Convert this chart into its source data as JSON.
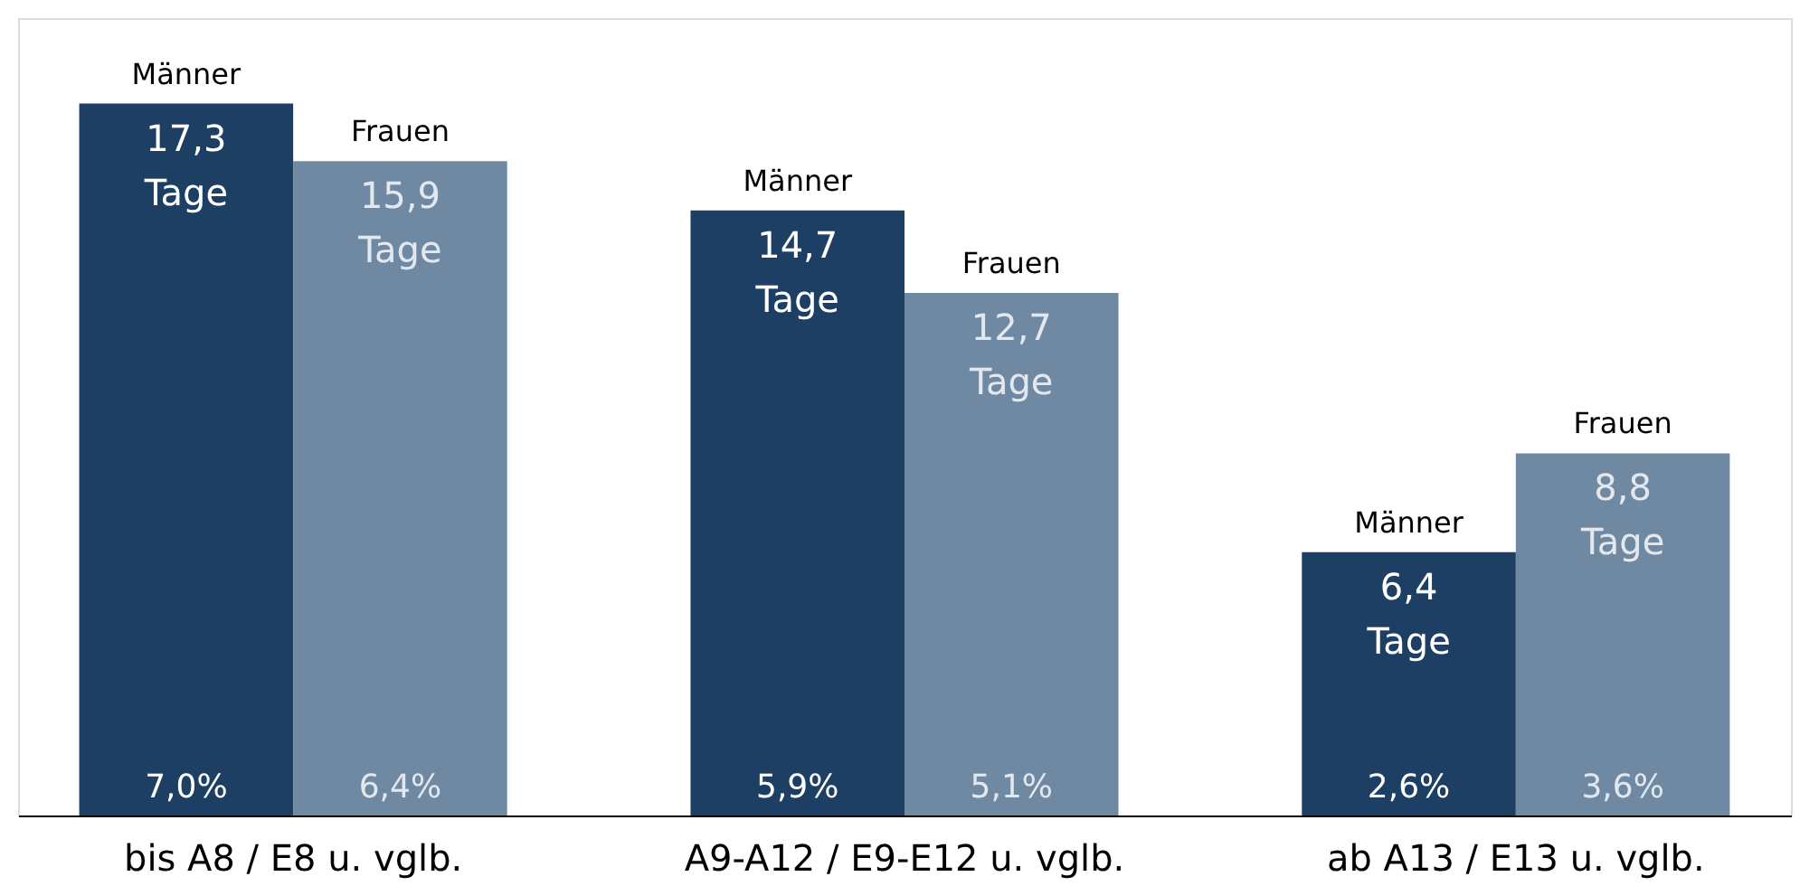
{
  "chart_data": {
    "type": "bar",
    "categories": [
      "bis A8 / E8 u. vglb.",
      "A9-A12 / E9-E12 u. vglb.",
      "ab A13 / E13 u. vglb."
    ],
    "series": [
      {
        "name": "Männer",
        "color": "#1c3f63",
        "values": [
          17.3,
          14.7,
          6.4
        ],
        "value_labels": [
          "17,3 Tage",
          "14,7 Tage",
          "6,4 Tage"
        ]
      },
      {
        "name": "Frauen",
        "color": "#7089a3",
        "values": [
          15.9,
          12.7,
          8.8
        ],
        "value_labels": [
          "15,9 Tage",
          "12,7 Tage",
          "8,8 Tage"
        ]
      }
    ],
    "annotations": [
      {
        "text": "7,0%",
        "x": "bis A8 / E8 u. vglb.",
        "y": 0
      },
      {
        "text": "6,4%",
        "x": "bis A8 / E8 u. vglb.",
        "y": 0
      },
      {
        "text": "5,9%",
        "x": "A9-A12 / E9-E12 u. vglb.",
        "y": 0
      },
      {
        "text": "5,1%",
        "x": "A9-A12 / E9-E12 u. vglb.",
        "y": 0
      },
      {
        "text": "2,6%",
        "x": "ab A13 / E13 u. vglb.",
        "y": 0
      },
      {
        "text": "3,6%",
        "x": "ab A13 / E13 u. vglb.",
        "y": 0
      }
    ],
    "tick_labels": "x",
    "grid": false,
    "legend": false
  }
}
